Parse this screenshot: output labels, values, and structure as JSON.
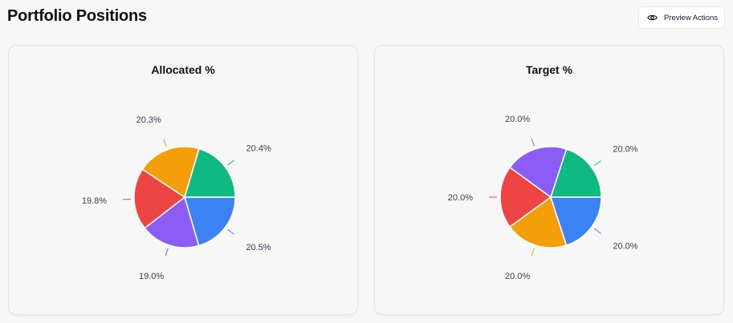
{
  "header": {
    "title": "Portfolio Positions",
    "preview_button_label": "Preview Actions",
    "preview_icon": "eye-icon"
  },
  "chart_data": [
    {
      "type": "pie",
      "title": "Allocated %",
      "start_angle_deg": 0,
      "direction": "clockwise",
      "slices": [
        {
          "value": 20.5,
          "label": "20.5%",
          "color": "#3b82f6"
        },
        {
          "value": 19.0,
          "label": "19.0%",
          "color": "#8b5cf6"
        },
        {
          "value": 19.8,
          "label": "19.8%",
          "color": "#ef4444"
        },
        {
          "value": 20.3,
          "label": "20.3%",
          "color": "#f59e0b"
        },
        {
          "value": 20.4,
          "label": "20.4%",
          "color": "#10b981"
        }
      ]
    },
    {
      "type": "pie",
      "title": "Target %",
      "start_angle_deg": 0,
      "direction": "counterclockwise",
      "slices": [
        {
          "value": 20.0,
          "label": "20.0%",
          "color": "#10b981"
        },
        {
          "value": 20.0,
          "label": "20.0%",
          "color": "#8b5cf6"
        },
        {
          "value": 20.0,
          "label": "20.0%",
          "color": "#ef4444"
        },
        {
          "value": 20.0,
          "label": "20.0%",
          "color": "#f59e0b"
        },
        {
          "value": 20.0,
          "label": "20.0%",
          "color": "#3b82f6"
        }
      ]
    }
  ]
}
